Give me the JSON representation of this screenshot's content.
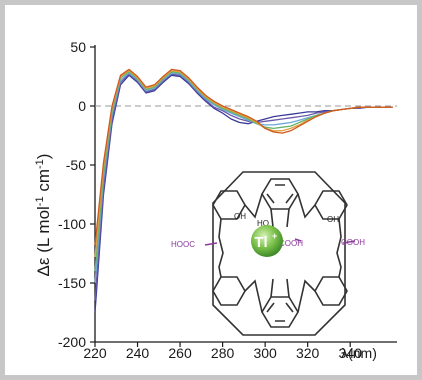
{
  "chart_data": {
    "type": "line",
    "ylabel": "Δε (L mol⁻¹ cm⁻¹)",
    "ylabel_parts": [
      "Δε (L mol",
      "-1",
      " cm",
      "-1",
      ")"
    ],
    "xlabel": "λ(nm)",
    "x_ticks": [
      "220",
      "240",
      "260",
      "280",
      "300",
      "320",
      "340"
    ],
    "y_ticks": [
      "50",
      "0",
      "-50",
      "-100",
      "-150",
      "-200"
    ],
    "xlim": [
      220,
      362
    ],
    "ylim": [
      -200,
      50
    ],
    "grid": false,
    "zero_line": true,
    "series": [
      {
        "color": "#3a3a9a",
        "x": [
          220,
          224,
          228,
          232,
          236,
          240,
          244,
          248,
          252,
          256,
          260,
          264,
          268,
          272,
          276,
          280,
          284,
          288,
          292,
          296,
          300,
          304,
          308,
          312,
          316,
          320,
          324,
          328,
          332,
          336,
          340,
          344,
          348,
          352,
          356,
          360
        ],
        "y": [
          -175,
          -75,
          -15,
          18,
          26,
          20,
          11,
          13,
          20,
          26,
          25,
          19,
          11,
          4,
          -2,
          -6,
          -11,
          -14,
          -15,
          -13,
          -11,
          -9,
          -8,
          -7,
          -6,
          -5,
          -5,
          -4,
          -4,
          -3,
          -2,
          -2,
          -1,
          -1,
          -1,
          -1
        ]
      },
      {
        "color": "#6a5aa8",
        "x": [
          220,
          224,
          228,
          232,
          236,
          240,
          244,
          248,
          252,
          256,
          260,
          264,
          268,
          272,
          276,
          280,
          284,
          288,
          292,
          296,
          300,
          304,
          308,
          312,
          316,
          320,
          324,
          328,
          332,
          336,
          340,
          344,
          348,
          352,
          356,
          360
        ],
        "y": [
          -165,
          -70,
          -12,
          20,
          27,
          21,
          12,
          14,
          21,
          27,
          26,
          20,
          12,
          5,
          -1,
          -4,
          -8,
          -11,
          -13,
          -14,
          -13,
          -12,
          -11,
          -10,
          -9,
          -8,
          -6,
          -5,
          -4,
          -3,
          -2,
          -2,
          -1,
          -1,
          -1,
          -1
        ]
      },
      {
        "color": "#6aa8d8",
        "x": [
          220,
          224,
          228,
          232,
          236,
          240,
          244,
          248,
          252,
          256,
          260,
          264,
          268,
          272,
          276,
          280,
          284,
          288,
          292,
          296,
          300,
          304,
          308,
          312,
          316,
          320,
          324,
          328,
          332,
          336,
          340,
          344,
          348,
          352,
          356,
          360
        ],
        "y": [
          -150,
          -62,
          -8,
          22,
          28,
          22,
          13,
          15,
          22,
          28,
          27,
          21,
          13,
          6,
          1,
          -3,
          -6,
          -9,
          -12,
          -15,
          -16,
          -16,
          -15,
          -14,
          -12,
          -10,
          -8,
          -6,
          -4,
          -3,
          -2,
          -1,
          -1,
          -1,
          -1,
          -1
        ]
      },
      {
        "color": "#66b36a",
        "x": [
          220,
          224,
          228,
          232,
          236,
          240,
          244,
          248,
          252,
          256,
          260,
          264,
          268,
          272,
          276,
          280,
          284,
          288,
          292,
          296,
          300,
          304,
          308,
          312,
          316,
          320,
          324,
          328,
          332,
          336,
          340,
          344,
          348,
          352,
          356,
          360
        ],
        "y": [
          -140,
          -58,
          -5,
          24,
          29,
          23,
          14,
          16,
          23,
          29,
          28,
          22,
          14,
          7,
          2,
          -2,
          -5,
          -8,
          -11,
          -15,
          -18,
          -19,
          -18,
          -17,
          -14,
          -11,
          -8,
          -6,
          -4,
          -3,
          -2,
          -1,
          -1,
          -1,
          -1,
          -1
        ]
      },
      {
        "color": "#e0a040",
        "x": [
          220,
          224,
          228,
          232,
          236,
          240,
          244,
          248,
          252,
          256,
          260,
          264,
          268,
          272,
          276,
          280,
          284,
          288,
          292,
          296,
          300,
          304,
          308,
          312,
          316,
          320,
          324,
          328,
          332,
          336,
          340,
          344,
          348,
          352,
          356,
          360
        ],
        "y": [
          -128,
          -52,
          -2,
          25,
          30,
          24,
          15,
          17,
          24,
          30,
          29,
          23,
          15,
          8,
          3,
          -1,
          -4,
          -7,
          -10,
          -14,
          -19,
          -21,
          -21,
          -19,
          -16,
          -12,
          -9,
          -6,
          -4,
          -3,
          -2,
          -1,
          -1,
          -1,
          -1,
          -1
        ]
      },
      {
        "color": "#d05a1e",
        "x": [
          220,
          224,
          228,
          232,
          236,
          240,
          244,
          248,
          252,
          256,
          260,
          264,
          268,
          272,
          276,
          280,
          284,
          288,
          292,
          296,
          300,
          304,
          308,
          312,
          316,
          320,
          324,
          328,
          332,
          336,
          340,
          344,
          348,
          352,
          356,
          360
        ],
        "y": [
          -118,
          -48,
          0,
          26,
          31,
          25,
          16,
          18,
          25,
          31,
          30,
          24,
          16,
          9,
          4,
          0,
          -3,
          -6,
          -9,
          -13,
          -19,
          -22,
          -23,
          -21,
          -17,
          -13,
          -9,
          -6,
          -4,
          -3,
          -2,
          -1,
          -1,
          -1,
          -1,
          -1
        ]
      }
    ]
  },
  "inset": {
    "metal_label": "Tl",
    "metal_charge": "+",
    "labels": [
      "OH",
      "HO",
      "OH",
      "HOOC",
      "COOH",
      "COOH"
    ]
  }
}
